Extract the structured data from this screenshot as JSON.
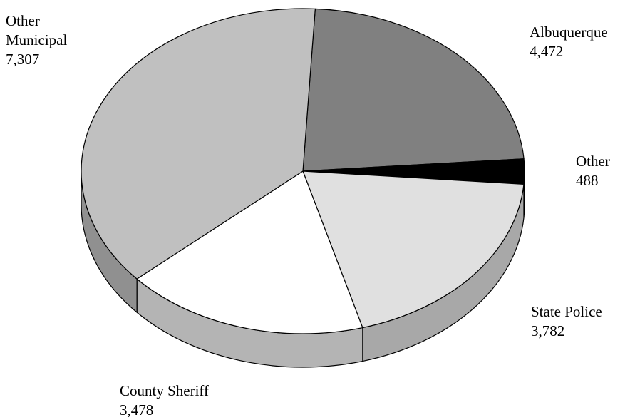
{
  "chart_data": {
    "type": "pie",
    "title": "",
    "three_d": true,
    "slices": [
      {
        "label": "Albuquerque",
        "value": 4472,
        "display_value": "4,472",
        "color": "#808080"
      },
      {
        "label": "Other",
        "value": 488,
        "display_value": "488",
        "color": "#000000"
      },
      {
        "label": "State Police",
        "value": 3782,
        "display_value": "3,782",
        "color": "#e0e0e0"
      },
      {
        "label": "County Sheriff",
        "value": 3478,
        "display_value": "3,478",
        "color": "#ffffff"
      },
      {
        "label": "Other Municipal",
        "value": 7307,
        "display_value": "7,307",
        "color": "#c0c0c0"
      }
    ]
  }
}
